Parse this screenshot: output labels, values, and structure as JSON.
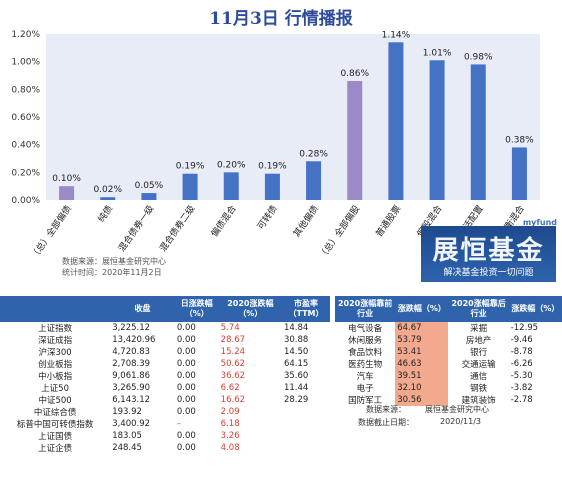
{
  "title": "11月3日  行情播报",
  "chart_data": {
    "type": "bar",
    "categories": [
      "（总）全部偏债",
      "纯债",
      "混合债券一级",
      "混合债券二级",
      "偏债混合",
      "可转债",
      "其他偏债",
      "（总）全部偏股",
      "普通股票",
      "偏股混合",
      "灵活配置",
      "平衡混合"
    ],
    "values": [
      0.1,
      0.02,
      0.05,
      0.19,
      0.2,
      0.19,
      0.28,
      0.86,
      1.14,
      1.01,
      0.98,
      0.38
    ],
    "data_labels": [
      "0.10%",
      "0.02%",
      "0.05%",
      "0.19%",
      "0.20%",
      "0.19%",
      "0.28%",
      "0.86%",
      "1.14%",
      "1.01%",
      "0.98%",
      "0.38%"
    ],
    "ylim": [
      0,
      1.2
    ],
    "yticks": [
      "0.00%",
      "0.20%",
      "0.40%",
      "0.60%",
      "0.80%",
      "1.00%",
      "1.20%"
    ],
    "colors": [
      "#9b8ac8",
      "#4472c4",
      "#4472c4",
      "#4472c4",
      "#4472c4",
      "#4472c4",
      "#4472c4",
      "#9b8ac8",
      "#4472c4",
      "#4472c4",
      "#4472c4",
      "#4472c4"
    ],
    "plot_bg": "#e8ecf6"
  },
  "source": {
    "line1": "数据来源：展恒基金研究中心",
    "line2": "统计时间：2020年11月2日"
  },
  "brand": {
    "top": "myfund",
    "name": "展恒基金",
    "slogan": "解决基金投资一切问题"
  },
  "index_table": {
    "headers": [
      "",
      "收盘",
      "日涨跌幅\n（%）",
      "2020涨跌幅\n（%）",
      "市盈率\n（TTM）"
    ],
    "rows": [
      [
        "上证指数",
        "3,225.12",
        "0.00",
        "5.74",
        "14.84"
      ],
      [
        "深证成指",
        "13,420.96",
        "0.00",
        "28.67",
        "30.88"
      ],
      [
        "沪深300",
        "4,720.83",
        "0.00",
        "15.24",
        "14.50"
      ],
      [
        "创业板指",
        "2,708.39",
        "0.00",
        "50.62",
        "64.15"
      ],
      [
        "中小板指",
        "9,061.86",
        "0.00",
        "36.62",
        "35.60"
      ],
      [
        "上证50",
        "3,265.90",
        "0.00",
        "6.62",
        "11.44"
      ],
      [
        "中证500",
        "6,143.12",
        "0.00",
        "16.62",
        "28.29"
      ],
      [
        "中证综合债",
        "193.92",
        "0.00",
        "2.09",
        ""
      ],
      [
        "标普中国可转债指数",
        "3,400.92",
        "–",
        "6.18",
        ""
      ],
      [
        "上证国债",
        "183.05",
        "0.00",
        "3.26",
        ""
      ],
      [
        "上证企债",
        "248.45",
        "0.00",
        "4.08",
        ""
      ]
    ]
  },
  "sector_table": {
    "headers": [
      "2020涨幅靠前\n行业",
      "涨跌幅（%）",
      "2020涨幅靠后\n行业",
      "涨跌幅（%）"
    ],
    "rows": [
      [
        "电气设备",
        "64.67",
        "采掘",
        "-12.95"
      ],
      [
        "休闲服务",
        "53.79",
        "房地产",
        "-9.46"
      ],
      [
        "食品饮料",
        "53.41",
        "银行",
        "-8.78"
      ],
      [
        "医药生物",
        "46.63",
        "交通运输",
        "-6.26"
      ],
      [
        "汽车",
        "39.51",
        "通信",
        "-5.30"
      ],
      [
        "电子",
        "32.10",
        "钢铁",
        "-3.82"
      ],
      [
        "国防军工",
        "30.56",
        "建筑装饰",
        "-2.78"
      ]
    ],
    "source_label": "数据来源：",
    "source_value": "展恒基金研究中心",
    "date_label": "数据截止日期：",
    "date_value": "2020/11/3"
  }
}
